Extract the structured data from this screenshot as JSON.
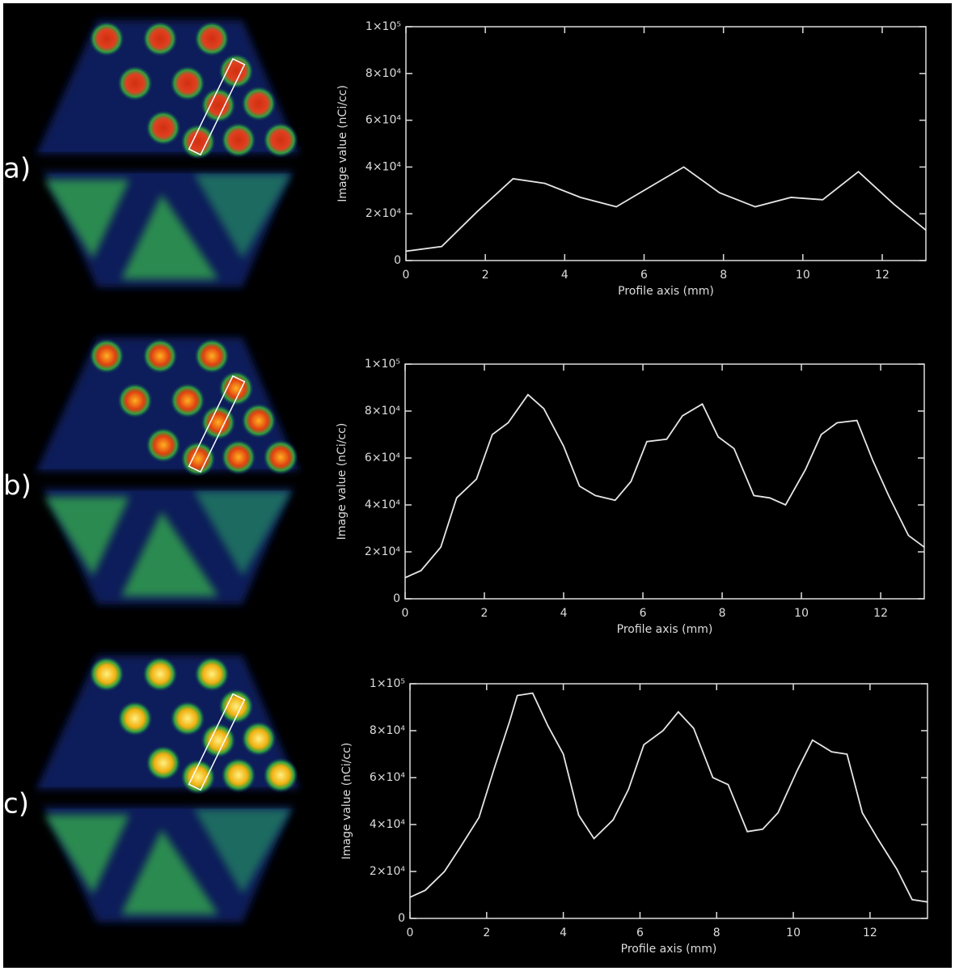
{
  "chart_data": [
    {
      "type": "line",
      "label": "a)",
      "x_label": "Profile axis (mm)",
      "y_label": "Image value (nCi/cc)",
      "xlim": [
        0,
        13.1
      ],
      "xticks": [
        0,
        2,
        4,
        6,
        8,
        10,
        12
      ],
      "ylim": [
        0,
        100000
      ],
      "yticks": [
        0,
        {
          "value": 20000,
          "label": "2×10⁴"
        },
        {
          "value": 40000,
          "label": "4×10⁴"
        },
        {
          "value": 60000,
          "label": "6×10⁴"
        },
        {
          "value": 80000,
          "label": "8×10⁴"
        },
        {
          "value": 100000,
          "label": "1×10⁵"
        }
      ],
      "color": "#e6e6e6",
      "x": [
        0,
        0.9,
        1.8,
        2.7,
        3.5,
        4.4,
        5.3,
        6.2,
        7.0,
        7.9,
        8.8,
        9.7,
        10.5,
        11.4,
        12.3,
        13.1
      ],
      "values": [
        4000,
        6000,
        21000,
        35000,
        33000,
        27000,
        23000,
        32000,
        40000,
        29000,
        23000,
        27000,
        26000,
        38000,
        24000,
        13000
      ]
    },
    {
      "type": "line",
      "label": "b)",
      "x_label": "Profile axis (mm)",
      "y_label": "Image value (nCi/cc)",
      "xlim": [
        0,
        13.1
      ],
      "xticks": [
        0,
        2,
        4,
        6,
        8,
        10,
        12
      ],
      "ylim": [
        0,
        100000
      ],
      "yticks": [
        0,
        {
          "value": 20000,
          "label": "2×10⁴"
        },
        {
          "value": 40000,
          "label": "4×10⁴"
        },
        {
          "value": 60000,
          "label": "6×10⁴"
        },
        {
          "value": 80000,
          "label": "8×10⁴"
        },
        {
          "value": 100000,
          "label": "1×10⁵"
        }
      ],
      "color": "#e6e6e6",
      "x": [
        0,
        0.4,
        0.9,
        1.3,
        1.8,
        2.2,
        2.6,
        3.1,
        3.5,
        4.0,
        4.4,
        4.8,
        5.3,
        5.7,
        6.1,
        6.6,
        7.0,
        7.5,
        7.9,
        8.3,
        8.8,
        9.2,
        9.6,
        10.1,
        10.5,
        10.9,
        11.4,
        11.8,
        12.2,
        12.7,
        13.1
      ],
      "values": [
        9000,
        12000,
        22000,
        43000,
        51000,
        70000,
        75000,
        87000,
        81000,
        65000,
        48000,
        44000,
        42000,
        50000,
        67000,
        68000,
        78000,
        83000,
        69000,
        64000,
        44000,
        43000,
        40000,
        55000,
        70000,
        75000,
        76000,
        59000,
        44000,
        27000,
        22000
      ]
    },
    {
      "type": "line",
      "label": "c)",
      "x_label": "Profile axis (mm)",
      "y_label": "Image value (nCi/cc)",
      "xlim": [
        0,
        13.5
      ],
      "xticks": [
        0,
        2,
        4,
        6,
        8,
        10,
        12
      ],
      "ylim": [
        0,
        100000
      ],
      "yticks": [
        0,
        {
          "value": 20000,
          "label": "2×10⁴"
        },
        {
          "value": 40000,
          "label": "4×10⁴"
        },
        {
          "value": 60000,
          "label": "6×10⁴"
        },
        {
          "value": 80000,
          "label": "8×10⁴"
        },
        {
          "value": 100000,
          "label": "1×10⁵"
        }
      ],
      "color": "#e6e6e6",
      "x": [
        0,
        0.4,
        0.9,
        1.3,
        1.8,
        2.2,
        2.6,
        2.8,
        3.2,
        3.6,
        4.0,
        4.4,
        4.8,
        5.3,
        5.7,
        6.1,
        6.6,
        7.0,
        7.4,
        7.9,
        8.3,
        8.8,
        9.2,
        9.6,
        10.1,
        10.5,
        11.0,
        11.4,
        11.8,
        12.2,
        12.7,
        13.1,
        13.5
      ],
      "values": [
        9000,
        12000,
        20000,
        30000,
        43000,
        64000,
        84000,
        95000,
        96000,
        82000,
        70000,
        44000,
        34000,
        42000,
        55000,
        74000,
        80000,
        88000,
        81000,
        60000,
        57000,
        37000,
        38000,
        45000,
        63000,
        76000,
        71000,
        70000,
        45000,
        34000,
        21000,
        8000,
        7000
      ]
    }
  ]
}
